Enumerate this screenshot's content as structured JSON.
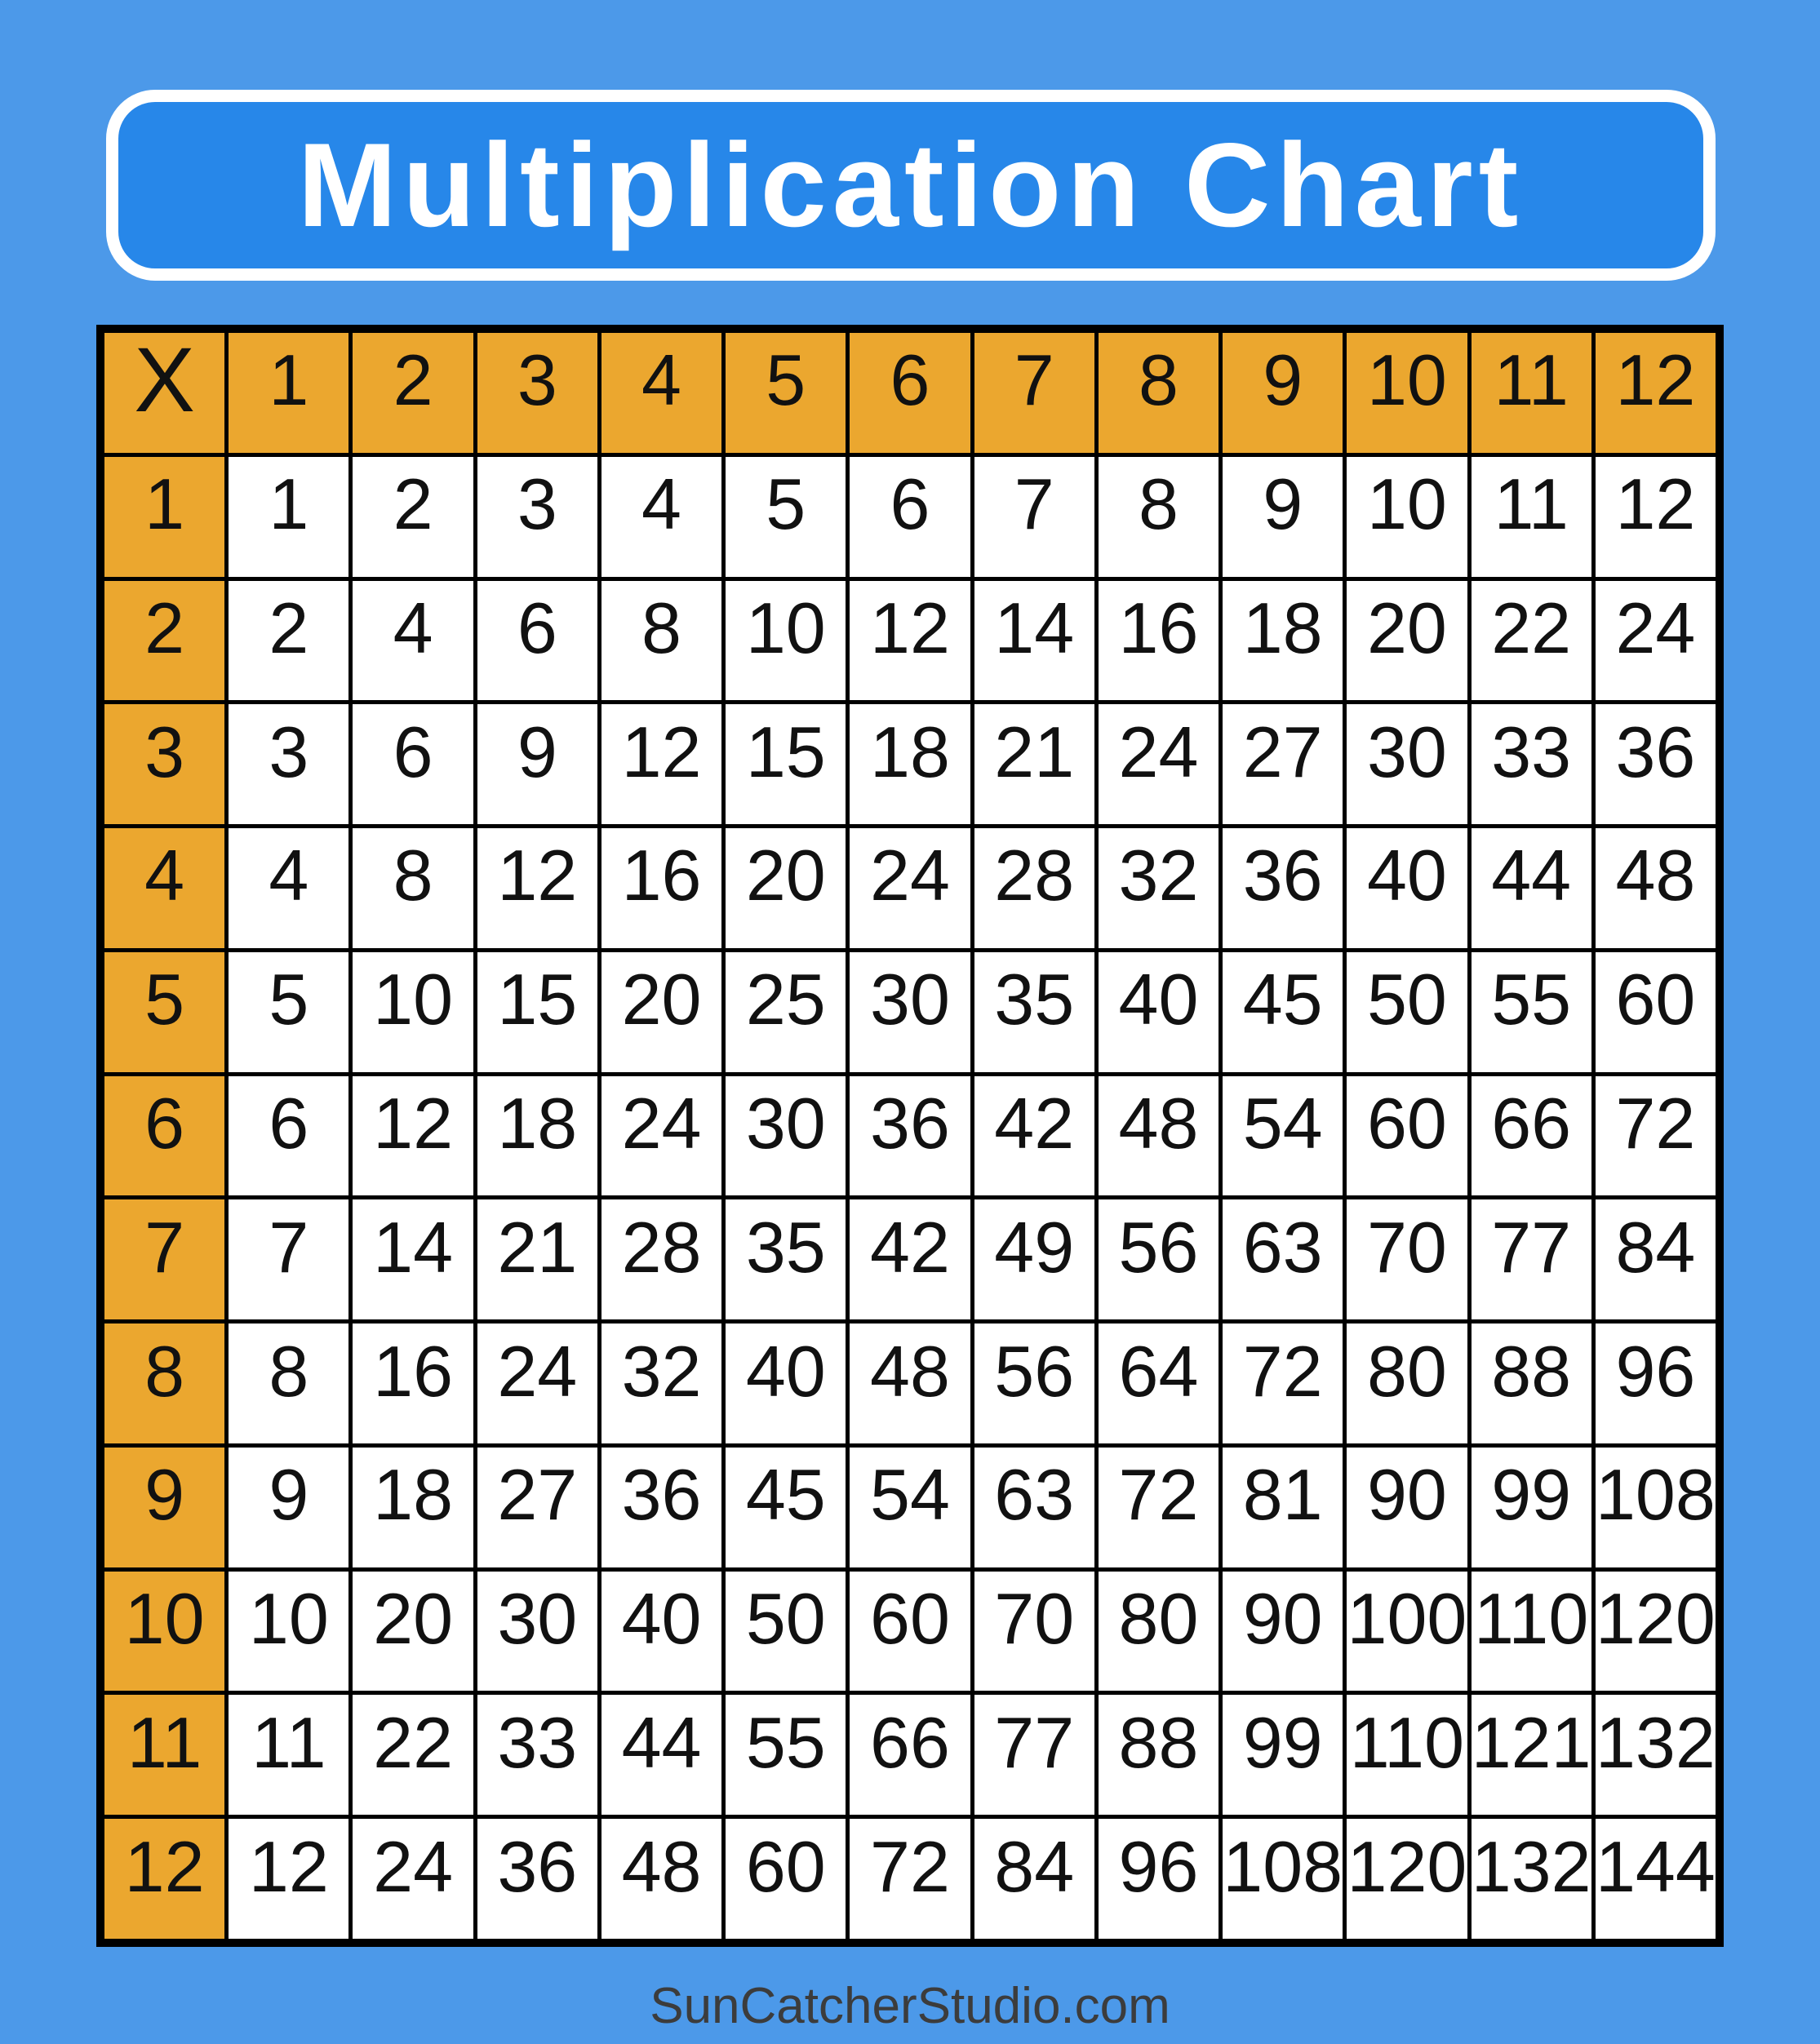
{
  "banner": {
    "title": "Multiplication Chart"
  },
  "footer": {
    "text": "SunCatcherStudio.com"
  },
  "colors": {
    "page_background": "#4C99E9",
    "banner_fill": "#2787E9",
    "banner_border": "#FFFFFF",
    "banner_text": "#FFFFFF",
    "header_cell_fill": "#EBA72F",
    "data_cell_fill": "#FFFFFF",
    "grid_line": "#000000",
    "cell_text": "#111111",
    "footer_text": "#3C3C3C"
  },
  "chart_data": {
    "type": "table",
    "title": "Multiplication Chart",
    "corner_label": "X",
    "column_headers": [
      "1",
      "2",
      "3",
      "4",
      "5",
      "6",
      "7",
      "8",
      "9",
      "10",
      "11",
      "12"
    ],
    "row_headers": [
      "1",
      "2",
      "3",
      "4",
      "5",
      "6",
      "7",
      "8",
      "9",
      "10",
      "11",
      "12"
    ],
    "rows": [
      [
        1,
        2,
        3,
        4,
        5,
        6,
        7,
        8,
        9,
        10,
        11,
        12
      ],
      [
        2,
        4,
        6,
        8,
        10,
        12,
        14,
        16,
        18,
        20,
        22,
        24
      ],
      [
        3,
        6,
        9,
        12,
        15,
        18,
        21,
        24,
        27,
        30,
        33,
        36
      ],
      [
        4,
        8,
        12,
        16,
        20,
        24,
        28,
        32,
        36,
        40,
        44,
        48
      ],
      [
        5,
        10,
        15,
        20,
        25,
        30,
        35,
        40,
        45,
        50,
        55,
        60
      ],
      [
        6,
        12,
        18,
        24,
        30,
        36,
        42,
        48,
        54,
        60,
        66,
        72
      ],
      [
        7,
        14,
        21,
        28,
        35,
        42,
        49,
        56,
        63,
        70,
        77,
        84
      ],
      [
        8,
        16,
        24,
        32,
        40,
        48,
        56,
        64,
        72,
        80,
        88,
        96
      ],
      [
        9,
        18,
        27,
        36,
        45,
        54,
        63,
        72,
        81,
        90,
        99,
        108
      ],
      [
        10,
        20,
        30,
        40,
        50,
        60,
        70,
        80,
        90,
        100,
        110,
        120
      ],
      [
        11,
        22,
        33,
        44,
        55,
        66,
        77,
        88,
        99,
        110,
        121,
        132
      ],
      [
        12,
        24,
        36,
        48,
        60,
        72,
        84,
        96,
        108,
        120,
        132,
        144
      ]
    ]
  }
}
